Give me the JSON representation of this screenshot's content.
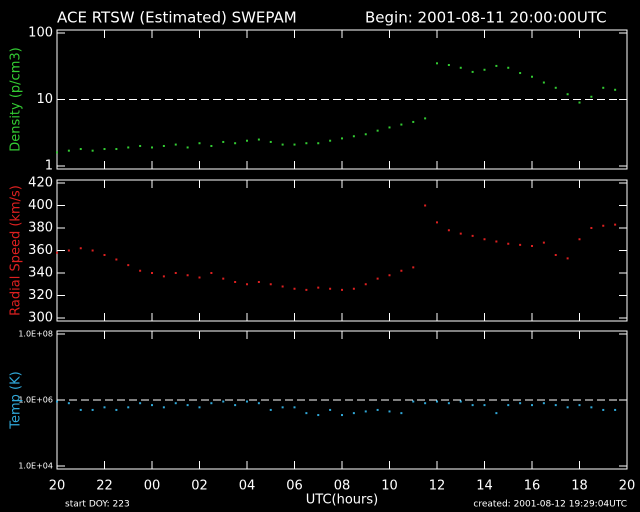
{
  "header": {
    "title": "ACE RTSW (Estimated) SWEPAM",
    "begin": "Begin: 2001-08-11 20:00:00UTC",
    "xlabel": "UTC(hours)",
    "start": "start DOY: 223",
    "created": "created: 2001-08-12 19:29:04UTC"
  },
  "chart_data": [
    {
      "type": "scatter",
      "ylabel": "Density (p/cm3)",
      "log_y": true,
      "color": "#33cc33",
      "ref_line": 10,
      "xlim": [
        0,
        24
      ],
      "ylim": [
        1,
        100
      ],
      "yticks": [
        1,
        10,
        100
      ],
      "x": [
        0,
        0.5,
        1,
        1.5,
        2,
        2.5,
        3,
        3.5,
        4,
        4.5,
        5,
        5.5,
        6,
        6.5,
        7,
        7.5,
        8,
        8.5,
        9,
        9.5,
        10,
        10.5,
        11,
        11.5,
        12,
        12.5,
        13,
        13.5,
        14,
        14.5,
        15,
        15.5,
        16,
        16.5,
        17,
        17.5,
        18,
        18.5,
        19,
        19.5,
        20,
        20.5,
        21,
        21.5,
        22,
        22.5,
        23,
        23.5
      ],
      "values": [
        1.6,
        1.7,
        1.8,
        1.7,
        1.8,
        1.8,
        1.9,
        2.0,
        1.9,
        2.0,
        2.1,
        1.9,
        2.2,
        2.0,
        2.3,
        2.2,
        2.4,
        2.5,
        2.3,
        2.1,
        2.1,
        2.2,
        2.2,
        2.4,
        2.6,
        2.8,
        3.0,
        3.4,
        3.8,
        4.2,
        4.6,
        5.2,
        35,
        33,
        30,
        26,
        28,
        32,
        30,
        25,
        22,
        18,
        15,
        12,
        9,
        11,
        15,
        14
      ]
    },
    {
      "type": "scatter",
      "ylabel": "Radial Speed (km/s)",
      "log_y": false,
      "color": "#dd2020",
      "xlim": [
        0,
        24
      ],
      "ylim": [
        300,
        420
      ],
      "yticks": [
        300,
        320,
        340,
        360,
        380,
        400,
        420
      ],
      "x": [
        0,
        0.5,
        1,
        1.5,
        2,
        2.5,
        3,
        3.5,
        4,
        4.5,
        5,
        5.5,
        6,
        6.5,
        7,
        7.5,
        8,
        8.5,
        9,
        9.5,
        10,
        10.5,
        11,
        11.5,
        12,
        12.5,
        13,
        13.5,
        14,
        14.5,
        15,
        15.5,
        16,
        16.5,
        17,
        17.5,
        18,
        18.5,
        19,
        19.5,
        20,
        20.5,
        21,
        21.5,
        22,
        22.5,
        23,
        23.5
      ],
      "values": [
        358,
        360,
        362,
        360,
        356,
        352,
        347,
        342,
        340,
        337,
        340,
        338,
        336,
        340,
        335,
        332,
        330,
        332,
        330,
        328,
        326,
        325,
        327,
        326,
        325,
        326,
        330,
        335,
        338,
        342,
        345,
        400,
        385,
        378,
        375,
        373,
        370,
        368,
        366,
        365,
        364,
        367,
        356,
        353,
        370,
        380,
        382,
        383
      ]
    },
    {
      "type": "scatter",
      "ylabel": "Temp (K)",
      "log_y": true,
      "color": "#30a8d8",
      "ref_line": 1000000,
      "xlim": [
        0,
        24
      ],
      "ylim": [
        10000,
        100000000
      ],
      "yticks": [
        {
          "value": 10000,
          "label": "1.0E+04"
        },
        {
          "value": 1000000,
          "label": "1.0E+06"
        },
        {
          "value": 100000000,
          "label": "1.0E+08"
        }
      ],
      "xticks": [
        {
          "value": 0,
          "label": "20"
        },
        {
          "value": 2,
          "label": "22"
        },
        {
          "value": 4,
          "label": "00"
        },
        {
          "value": 6,
          "label": "02"
        },
        {
          "value": 8,
          "label": "04"
        },
        {
          "value": 10,
          "label": "06"
        },
        {
          "value": 12,
          "label": "08"
        },
        {
          "value": 14,
          "label": "10"
        },
        {
          "value": 16,
          "label": "12"
        },
        {
          "value": 18,
          "label": "14"
        },
        {
          "value": 20,
          "label": "16"
        },
        {
          "value": 22,
          "label": "18"
        },
        {
          "value": 24,
          "label": "20"
        }
      ],
      "x": [
        0,
        0.5,
        1,
        1.5,
        2,
        2.5,
        3,
        3.5,
        4,
        4.5,
        5,
        5.5,
        6,
        6.5,
        7,
        7.5,
        8,
        8.5,
        9,
        9.5,
        10,
        10.5,
        11,
        11.5,
        12,
        12.5,
        13,
        13.5,
        14,
        14.5,
        15,
        15.5,
        16,
        16.5,
        17,
        17.5,
        18,
        18.5,
        19,
        19.5,
        20,
        20.5,
        21,
        21.5,
        22,
        22.5,
        23,
        23.5
      ],
      "values": [
        900000,
        800000,
        500000,
        500000,
        600000,
        500000,
        600000,
        800000,
        700000,
        600000,
        800000,
        700000,
        600000,
        800000,
        900000,
        700000,
        900000,
        800000,
        500000,
        600000,
        600000,
        400000,
        350000,
        500000,
        350000,
        400000,
        450000,
        500000,
        450000,
        400000,
        900000,
        800000,
        900000,
        800000,
        900000,
        700000,
        700000,
        400000,
        700000,
        800000,
        700000,
        800000,
        700000,
        600000,
        700000,
        600000,
        500000,
        500000
      ]
    }
  ]
}
